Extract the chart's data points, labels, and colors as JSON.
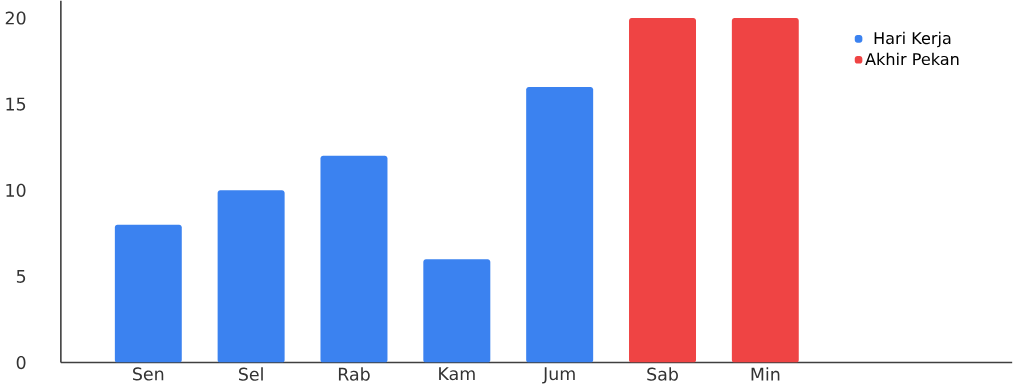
{
  "chart_data": {
    "type": "bar",
    "categories": [
      "Sen",
      "Sel",
      "Rab",
      "Kam",
      "Jum",
      "Sab",
      "Min"
    ],
    "series": [
      {
        "name": "Hari Kerja",
        "color": "#3b82f0",
        "values": [
          8,
          10,
          12,
          6,
          16,
          null,
          null
        ]
      },
      {
        "name": "Akhir Pekan",
        "color": "#ef4444",
        "values": [
          null,
          null,
          null,
          null,
          null,
          20,
          20
        ]
      }
    ],
    "ylim": [
      0,
      21
    ],
    "yticks": [
      0,
      5,
      10,
      15,
      20
    ],
    "grid": false,
    "legend": "top right"
  }
}
